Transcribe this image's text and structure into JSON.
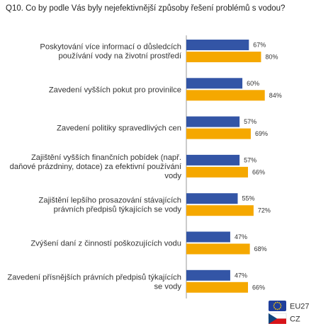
{
  "chart_data": {
    "type": "bar",
    "orientation": "horizontal",
    "title": "Q10. Co by podle Vás byly nejefektivnější způsoby řešení problémů s vodou?",
    "categories": [
      [
        "Poskytování více informací o důsledcích",
        "používání vody na životní prostředí"
      ],
      [
        "Zavedení vyšších pokut pro provinilce"
      ],
      [
        "Zavedení politiky spravedlivých cen"
      ],
      [
        "Zajištění vyšších finančních pobídek (např.",
        "daňové prázdniny, dotace) za efektivní používání",
        "vody"
      ],
      [
        "Zajištění lepšího prosazování stávajících",
        "právních předpisů týkajících se vody"
      ],
      [
        "Zvýšení daní z činností poškozujících vodu"
      ],
      [
        "Zavedení přísnějších právních předpisů týkajících",
        "se vody"
      ]
    ],
    "series": [
      {
        "name": "EU27",
        "values": [
          67,
          60,
          57,
          57,
          55,
          47,
          47
        ],
        "color": "#3355a6",
        "flag": "eu-flag-icon"
      },
      {
        "name": "CZ",
        "values": [
          80,
          84,
          69,
          66,
          72,
          68,
          66
        ],
        "color": "#f5a800",
        "flag": "cz-flag-icon"
      }
    ],
    "value_suffix": "%",
    "xlim": [
      0,
      100
    ],
    "grid": false,
    "legend": "bottom-right"
  }
}
